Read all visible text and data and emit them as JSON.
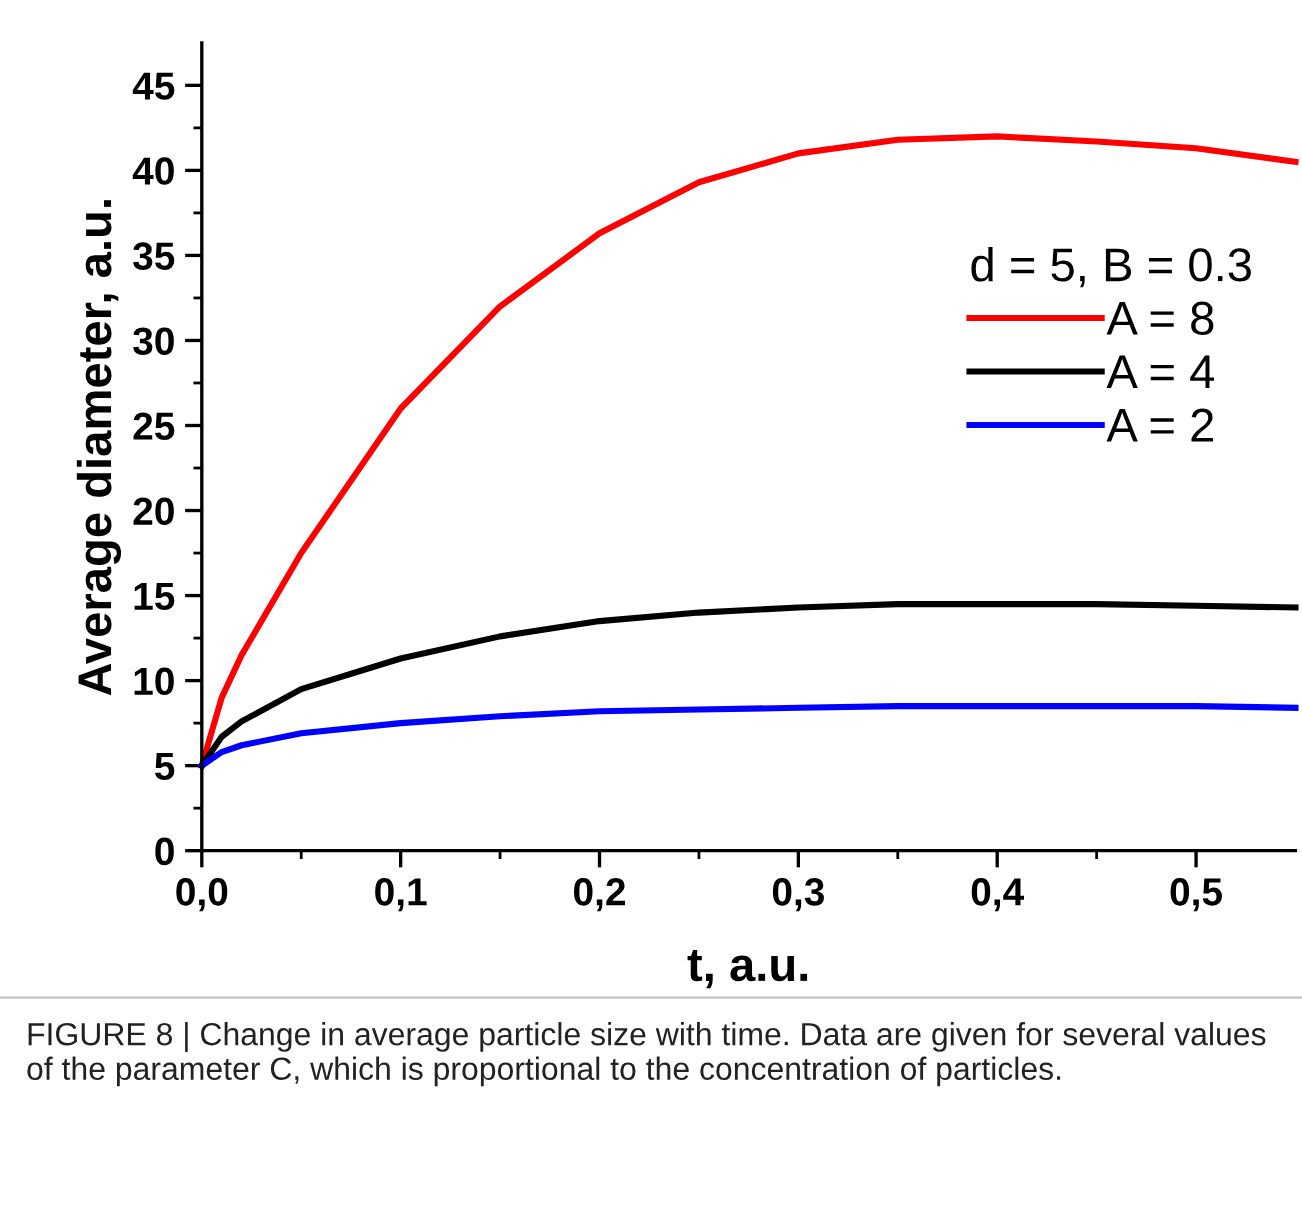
{
  "chart_data": {
    "type": "line",
    "xlabel": "t, a.u.",
    "ylabel": "Average diameter, a.u.",
    "legend_title": "d = 5, B = 0.3",
    "legend": "top right",
    "grid": false,
    "marker": "none",
    "line_style": "solid",
    "x": [
      0,
      0.01,
      0.02,
      0.05,
      0.1,
      0.15,
      0.2,
      0.25,
      0.3,
      0.35,
      0.4,
      0.45,
      0.5,
      0.55
    ],
    "series": [
      {
        "name": "A = 8",
        "color": "#ff0000",
        "values": [
          5,
          9,
          11.5,
          17.5,
          26,
          32,
          36.3,
          39.3,
          41,
          41.8,
          42,
          41.7,
          41.3,
          40.5
        ]
      },
      {
        "name": "A = 4",
        "color": "#000000",
        "values": [
          5,
          6.7,
          7.6,
          9.5,
          11.3,
          12.6,
          13.5,
          14,
          14.3,
          14.5,
          14.5,
          14.5,
          14.4,
          14.3
        ]
      },
      {
        "name": "A = 2",
        "color": "#0000ff",
        "values": [
          5,
          5.8,
          6.2,
          6.9,
          7.5,
          7.9,
          8.2,
          8.3,
          8.4,
          8.5,
          8.5,
          8.5,
          8.5,
          8.4
        ]
      }
    ],
    "xlim": [
      0,
      0.55
    ],
    "ylim": [
      0,
      47.5
    ],
    "xticks": [
      {
        "value": 0,
        "label": "0,0"
      },
      {
        "value": 0.05,
        "label": null
      },
      {
        "value": 0.1,
        "label": "0,1"
      },
      {
        "value": 0.15,
        "label": null
      },
      {
        "value": 0.2,
        "label": "0,2"
      },
      {
        "value": 0.25,
        "label": null
      },
      {
        "value": 0.3,
        "label": "0,3"
      },
      {
        "value": 0.35,
        "label": null
      },
      {
        "value": 0.4,
        "label": "0,4"
      },
      {
        "value": 0.45,
        "label": null
      },
      {
        "value": 0.5,
        "label": "0,5"
      }
    ],
    "yticks": [
      0,
      {
        "value": 2.5,
        "label": null
      },
      5,
      {
        "value": 7.5,
        "label": null
      },
      10,
      {
        "value": 12.5,
        "label": null
      },
      15,
      {
        "value": 17.5,
        "label": null
      },
      20,
      {
        "value": 22.5,
        "label": null
      },
      25,
      {
        "value": 27.5,
        "label": null
      },
      30,
      {
        "value": 32.5,
        "label": null
      },
      35,
      {
        "value": 37.5,
        "label": null
      },
      40,
      {
        "value": 42.5,
        "label": null
      },
      45
    ],
    "annotations": [
      "FIGURE 8 | Change in average particle size with time. Data are given for several values of the parameter C, which is proportional to the concentration of particles."
    ]
  }
}
